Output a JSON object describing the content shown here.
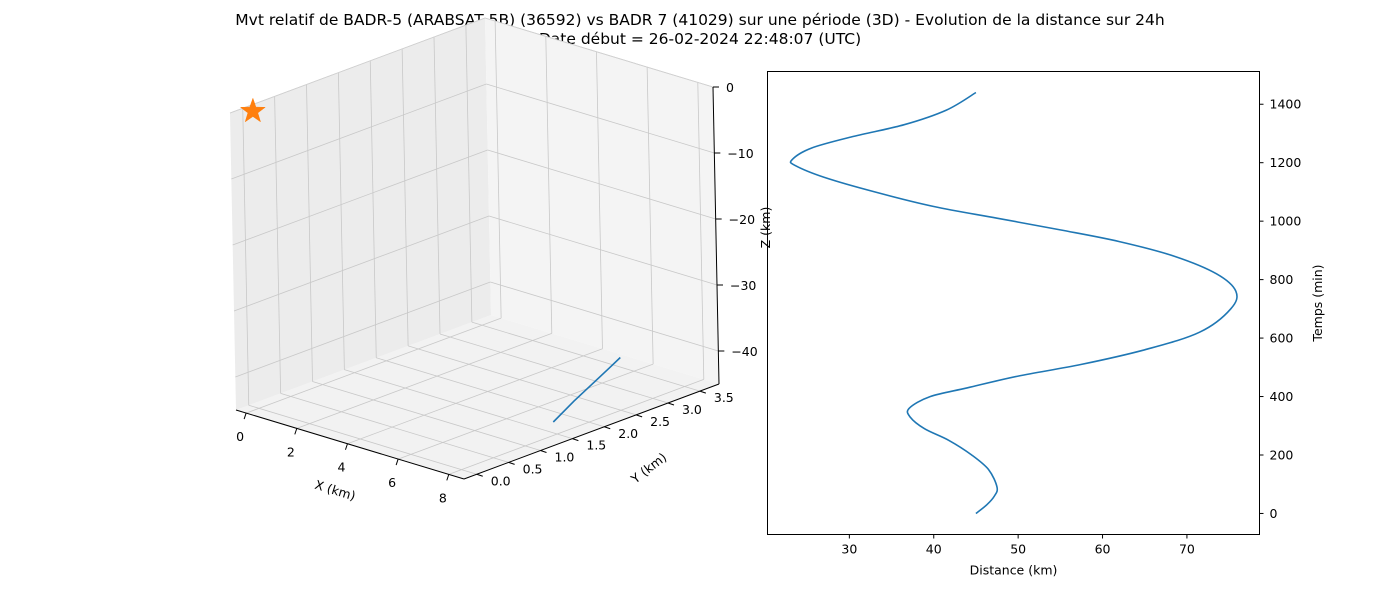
{
  "figure": {
    "title_line1": "Mvt relatif de BADR-5 (ARABSAT 5B) (36592) vs BADR 7 (41029) sur une période (3D) - Evolution de la distance sur 24h",
    "title_line2": "Date début = 26-02-2024 22:48:07 (UTC)"
  },
  "colors": {
    "line": "#1f77b4",
    "marker": "#ff7f0e",
    "grid": "#cccccc",
    "pane": "#f2f2f2"
  },
  "chart_data": [
    {
      "type": "line3d",
      "xlabel": "X (km)",
      "ylabel": "Y (km)",
      "zlabel": "Z (km)",
      "xticks": [
        "0",
        "2",
        "4",
        "6",
        "8"
      ],
      "yticks": [
        "0.0",
        "0.5",
        "1.0",
        "1.5",
        "2.0",
        "2.5",
        "3.0",
        "3.5"
      ],
      "zticks": [
        "0",
        "−10",
        "−20",
        "−30",
        "−40"
      ],
      "xlim": [
        -0.4,
        8.6
      ],
      "ylim": [
        -0.2,
        3.8
      ],
      "zlim": [
        -45,
        0
      ],
      "marker": {
        "symbol": "star",
        "x": 0,
        "y": 0,
        "z": 0
      },
      "series": [
        {
          "x": [
            7.6,
            7.8,
            8.0,
            8.2,
            8.4
          ],
          "y": [
            1.6,
            1.85,
            2.05,
            2.25,
            2.35
          ],
          "z": [
            -44,
            -41.5,
            -39.5,
            -37.5,
            -36
          ]
        }
      ]
    },
    {
      "type": "line",
      "xlabel": "Distance (km)",
      "ylabel": "Temps (min)",
      "xticks": [
        30,
        40,
        50,
        60,
        70
      ],
      "yticks": [
        0,
        200,
        400,
        600,
        800,
        1000,
        1200,
        1400
      ],
      "xlim": [
        20.3,
        78.6
      ],
      "ylim": [
        -72,
        1512
      ],
      "yaxis_side": "right",
      "series": [
        {
          "x": [
            45.0,
            46.3,
            47.2,
            47.5,
            46.5,
            44.5,
            41.8,
            38.9,
            37.2,
            37.1,
            39.6,
            44.0,
            50.0,
            57.5,
            65.0,
            71.5,
            75.2,
            75.8,
            73.5,
            68.5,
            62.0,
            55.0,
            47.5,
            40.0,
            33.0,
            27.0,
            23.6,
            23.2,
            25.5,
            30.5,
            36.5,
            41.5,
            45.0
          ],
          "y": [
            0,
            30,
            60,
            90,
            150,
            200,
            250,
            290,
            330,
            360,
            400,
            430,
            470,
            510,
            560,
            620,
            700,
            760,
            820,
            880,
            930,
            970,
            1010,
            1050,
            1100,
            1150,
            1190,
            1210,
            1250,
            1290,
            1330,
            1380,
            1440
          ]
        }
      ]
    }
  ]
}
